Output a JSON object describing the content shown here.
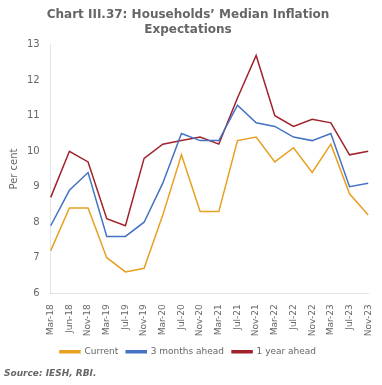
{
  "chart_data": {
    "type": "line",
    "title": "Chart III.37: Households’ Median Inflation\nExpectations",
    "ylabel": "Per cent",
    "annotation": "Source: IESH, RBI.",
    "categories": [
      "Mar-18",
      "Jun-18",
      "Nov-18",
      "Mar-19",
      "Jul-19",
      "Nov-19",
      "Mar-20",
      "Jul-20",
      "Nov-20",
      "Mar-21",
      "Jul-21",
      "Nov-21",
      "Mar-22",
      "Jul-22",
      "Nov-22",
      "Mar-23",
      "Jul-23",
      "Nov-23"
    ],
    "series": [
      {
        "name": "Current",
        "color": "#E8A020",
        "values": [
          7.2,
          8.4,
          8.4,
          7.0,
          6.6,
          6.7,
          8.2,
          9.9,
          8.3,
          8.3,
          10.3,
          10.4,
          9.7,
          10.1,
          9.4,
          10.2,
          8.8,
          8.2
        ]
      },
      {
        "name": "3 months ahead",
        "color": "#4472C4",
        "values": [
          7.9,
          8.9,
          9.4,
          7.6,
          7.6,
          8.0,
          9.1,
          10.5,
          10.3,
          10.3,
          11.3,
          10.8,
          10.7,
          10.4,
          10.3,
          10.5,
          9.0,
          9.1
        ]
      },
      {
        "name": "1 year ahead",
        "color": "#A0222A",
        "values": [
          8.7,
          10.0,
          9.7,
          8.1,
          7.9,
          9.8,
          10.2,
          10.3,
          10.4,
          10.2,
          11.5,
          12.7,
          11.0,
          10.7,
          10.9,
          10.8,
          9.9,
          10.0
        ]
      }
    ],
    "ylim": [
      6,
      13
    ],
    "yticks": [
      6,
      7,
      8,
      9,
      10,
      11,
      12,
      13
    ],
    "grid": false,
    "legend": "bottom"
  }
}
